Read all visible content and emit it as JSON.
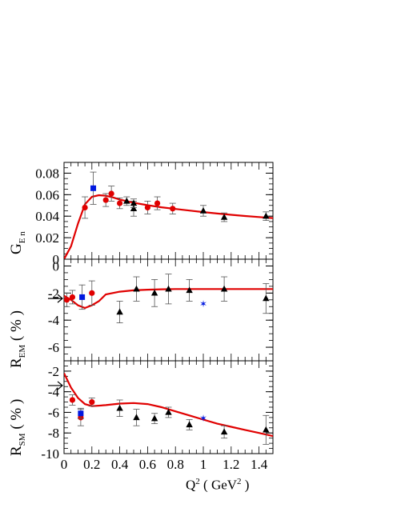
{
  "chart_data": [
    {
      "type": "scatter",
      "panel": "top",
      "ylabel_main": "G",
      "ylabel_sub": "E n",
      "ylim": [
        0,
        0.09
      ],
      "yticks": [
        "0",
        "0.02",
        "0.04",
        "0.06",
        "0.08"
      ],
      "ytick_values": [
        0,
        0.02,
        0.04,
        0.06,
        0.08
      ],
      "xlim": [
        0,
        1.5
      ],
      "curve": {
        "color": "#e00000",
        "x": [
          0,
          0.05,
          0.1,
          0.15,
          0.2,
          0.25,
          0.3,
          0.35,
          0.4,
          0.5,
          0.6,
          0.7,
          0.8,
          0.9,
          1.0,
          1.1,
          1.2,
          1.3,
          1.4,
          1.5
        ],
        "y": [
          0,
          0.012,
          0.033,
          0.051,
          0.058,
          0.0595,
          0.059,
          0.0575,
          0.0555,
          0.0525,
          0.0502,
          0.0483,
          0.0467,
          0.0452,
          0.0438,
          0.0425,
          0.0413,
          0.0402,
          0.0392,
          0.0382
        ]
      },
      "series": [
        {
          "marker": "circle",
          "color": "#e00000",
          "points": [
            [
              0.15,
              0.048,
              0.01
            ],
            [
              0.3,
              0.055,
              0.006
            ],
            [
              0.34,
              0.061,
              0.007
            ],
            [
              0.4,
              0.052,
              0.005
            ],
            [
              0.6,
              0.048,
              0.006
            ],
            [
              0.67,
              0.052,
              0.006
            ],
            [
              0.78,
              0.047,
              0.005
            ]
          ]
        },
        {
          "marker": "square",
          "color": "#0018e0",
          "points": [
            [
              0.21,
              0.066,
              0.015
            ]
          ]
        },
        {
          "marker": "triangle",
          "color": "#000000",
          "points": [
            [
              0.45,
              0.054,
              0.004
            ],
            [
              0.5,
              0.047,
              0.007
            ],
            [
              0.5,
              0.052,
              0.004
            ],
            [
              1.0,
              0.045,
              0.005
            ],
            [
              1.15,
              0.039,
              0.004
            ],
            [
              1.45,
              0.04,
              0.004
            ]
          ]
        }
      ]
    },
    {
      "type": "scatter",
      "panel": "middle",
      "ylabel_main": "R",
      "ylabel_sub": "EM",
      "ylabel_tail": "( % )",
      "ylim": [
        -7,
        0.5
      ],
      "yticks": [
        "0",
        "-2",
        "-4",
        "-6"
      ],
      "ytick_values": [
        0,
        -2,
        -4,
        -6
      ],
      "arrow_at": -2.4,
      "xlim": [
        0,
        1.5
      ],
      "curve": {
        "color": "#e00000",
        "x": [
          0,
          0.05,
          0.1,
          0.15,
          0.2,
          0.25,
          0.3,
          0.4,
          0.5,
          0.6,
          0.7,
          0.8,
          0.9,
          1.0,
          1.1,
          1.2,
          1.3,
          1.4,
          1.5
        ],
        "y": [
          -2.2,
          -2.5,
          -2.9,
          -3.1,
          -2.9,
          -2.6,
          -2.1,
          -1.9,
          -1.8,
          -1.75,
          -1.72,
          -1.7,
          -1.7,
          -1.7,
          -1.7,
          -1.7,
          -1.7,
          -1.7,
          -1.7
        ]
      },
      "series": [
        {
          "marker": "circle",
          "color": "#e00000",
          "points": [
            [
              0.02,
              -2.5,
              0.5
            ],
            [
              0.06,
              -2.3,
              0.5
            ],
            [
              0.2,
              -2.0,
              0.9
            ]
          ]
        },
        {
          "marker": "square",
          "color": "#0018e0",
          "points": [
            [
              0.13,
              -2.3,
              0.9
            ]
          ]
        },
        {
          "marker": "triangle",
          "color": "#000000",
          "points": [
            [
              0.4,
              -3.4,
              0.8
            ],
            [
              0.52,
              -1.7,
              0.9
            ],
            [
              0.65,
              -2.0,
              1.0
            ],
            [
              0.75,
              -1.7,
              1.1
            ],
            [
              0.9,
              -1.8,
              0.8
            ],
            [
              1.15,
              -1.7,
              0.9
            ],
            [
              1.45,
              -2.4,
              1.1
            ]
          ]
        },
        {
          "marker": "star",
          "color": "#0018e0",
          "points": [
            [
              1.0,
              -2.8,
              0
            ]
          ]
        }
      ]
    },
    {
      "type": "scatter",
      "panel": "bottom",
      "ylabel_main": "R",
      "ylabel_sub": "SM",
      "ylabel_tail": "( % )",
      "ylim": [
        -10,
        -1
      ],
      "yticks": [
        "-2",
        "-4",
        "-6",
        "-8",
        "-10"
      ],
      "ytick_values": [
        -2,
        -4,
        -6,
        -8,
        -10
      ],
      "arrow_at": -3.4,
      "xlim": [
        0,
        1.5
      ],
      "xticks": [
        "0",
        "0.2",
        "0.4",
        "0.6",
        "0.8",
        "1",
        "1.2",
        "1.4"
      ],
      "xtick_values": [
        0,
        0.2,
        0.4,
        0.6,
        0.8,
        1.0,
        1.2,
        1.4
      ],
      "xlabel_main": "Q",
      "xlabel_sup": "2",
      "xlabel_unit": "( GeV",
      "xlabel_unit_sup": "2",
      "xlabel_tail": ")",
      "curve": {
        "color": "#e00000",
        "x": [
          0,
          0.05,
          0.1,
          0.15,
          0.2,
          0.3,
          0.4,
          0.5,
          0.6,
          0.7,
          0.8,
          0.9,
          1.0,
          1.1,
          1.2,
          1.3,
          1.4,
          1.5
        ],
        "y": [
          -2.2,
          -3.6,
          -4.6,
          -5.2,
          -5.4,
          -5.3,
          -5.15,
          -5.1,
          -5.2,
          -5.5,
          -5.9,
          -6.3,
          -6.7,
          -7.1,
          -7.4,
          -7.7,
          -8.0,
          -8.3
        ]
      },
      "series": [
        {
          "marker": "circle",
          "color": "#e00000",
          "points": [
            [
              0.06,
              -4.8,
              0.5
            ],
            [
              0.12,
              -6.5,
              0.8
            ],
            [
              0.2,
              -5.0,
              0.4
            ]
          ]
        },
        {
          "marker": "square",
          "color": "#0018e0",
          "points": [
            [
              0.12,
              -6.1,
              0.5
            ]
          ]
        },
        {
          "marker": "triangle",
          "color": "#000000",
          "points": [
            [
              0.4,
              -5.6,
              0.8
            ],
            [
              0.52,
              -6.5,
              0.8
            ],
            [
              0.65,
              -6.6,
              0.5
            ],
            [
              0.75,
              -6.0,
              0.5
            ],
            [
              0.9,
              -7.2,
              0.5
            ],
            [
              1.15,
              -7.9,
              0.6
            ],
            [
              1.45,
              -7.7,
              1.4
            ]
          ]
        },
        {
          "marker": "star",
          "color": "#0018e0",
          "points": [
            [
              1.0,
              -6.6,
              0
            ]
          ]
        }
      ]
    }
  ]
}
